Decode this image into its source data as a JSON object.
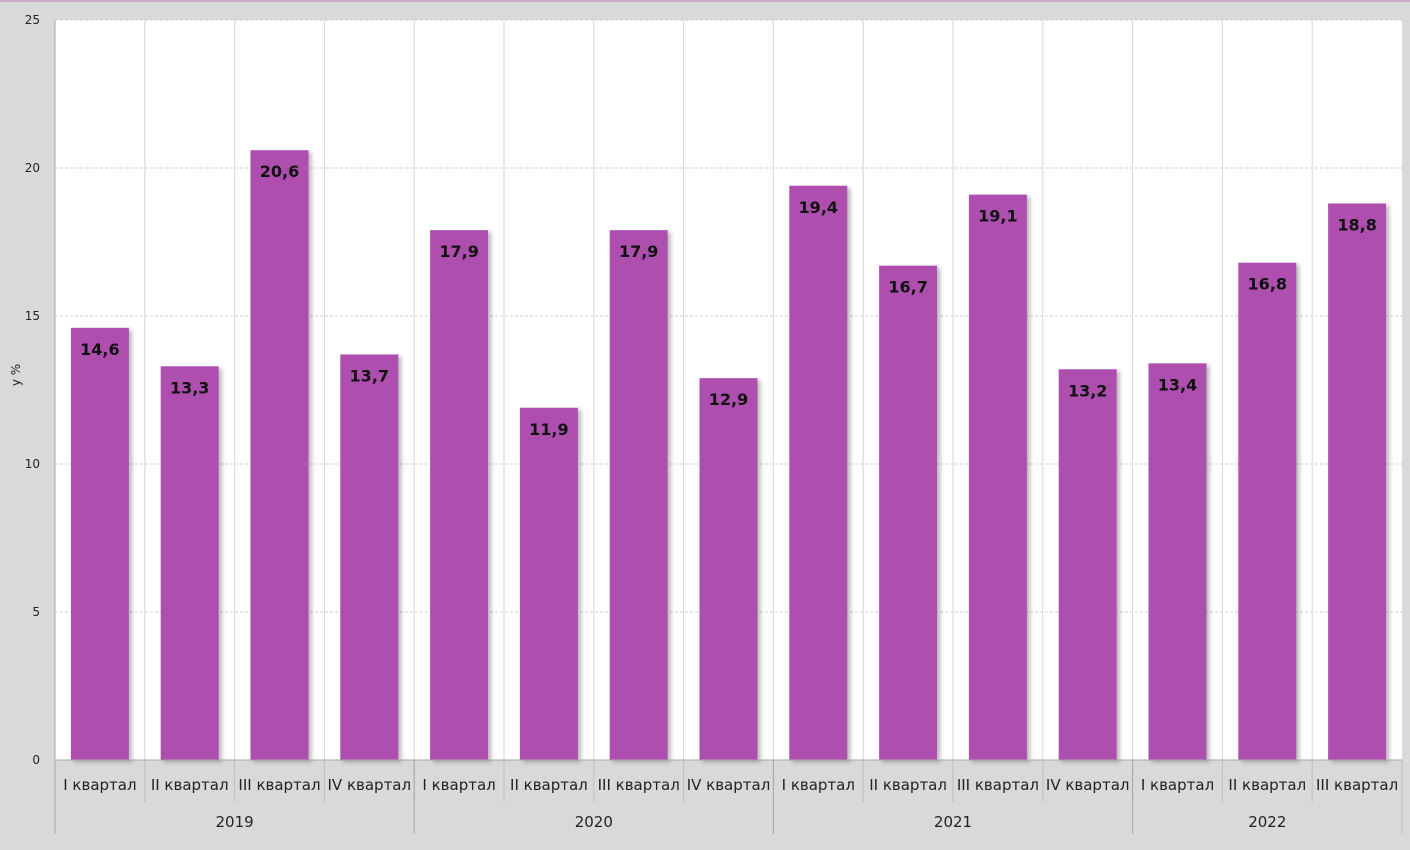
{
  "chart_data": {
    "type": "bar",
    "title": "",
    "ylabel": "y %",
    "xlabel": "",
    "ylim": [
      0,
      25
    ],
    "yticks": [
      0,
      5,
      10,
      15,
      20,
      25
    ],
    "grid": true,
    "legend": "none",
    "bar_color": "#ae4faf",
    "years": [
      {
        "label": "2019",
        "count": 4
      },
      {
        "label": "2020",
        "count": 4
      },
      {
        "label": "2021",
        "count": 4
      },
      {
        "label": "2022",
        "count": 3
      }
    ],
    "categories": [
      "I квартал",
      "II квартал",
      "III квартал",
      "IV квартал",
      "I квартал",
      "II квартал",
      "III квартал",
      "IV квартал",
      "I квартал",
      "II квартал",
      "III квартал",
      "IV квартал",
      "I квартал",
      "II квартал",
      "III квартал"
    ],
    "values": [
      14.6,
      13.3,
      20.6,
      13.7,
      17.9,
      11.9,
      17.9,
      12.9,
      19.4,
      16.7,
      19.1,
      13.2,
      13.4,
      16.8,
      18.8
    ],
    "value_labels": [
      "14,6",
      "13,3",
      "20,6",
      "13,7",
      "17,9",
      "11,9",
      "17,9",
      "12,9",
      "19,4",
      "16,7",
      "19,1",
      "13,2",
      "13,4",
      "16,8",
      "18,8"
    ]
  }
}
